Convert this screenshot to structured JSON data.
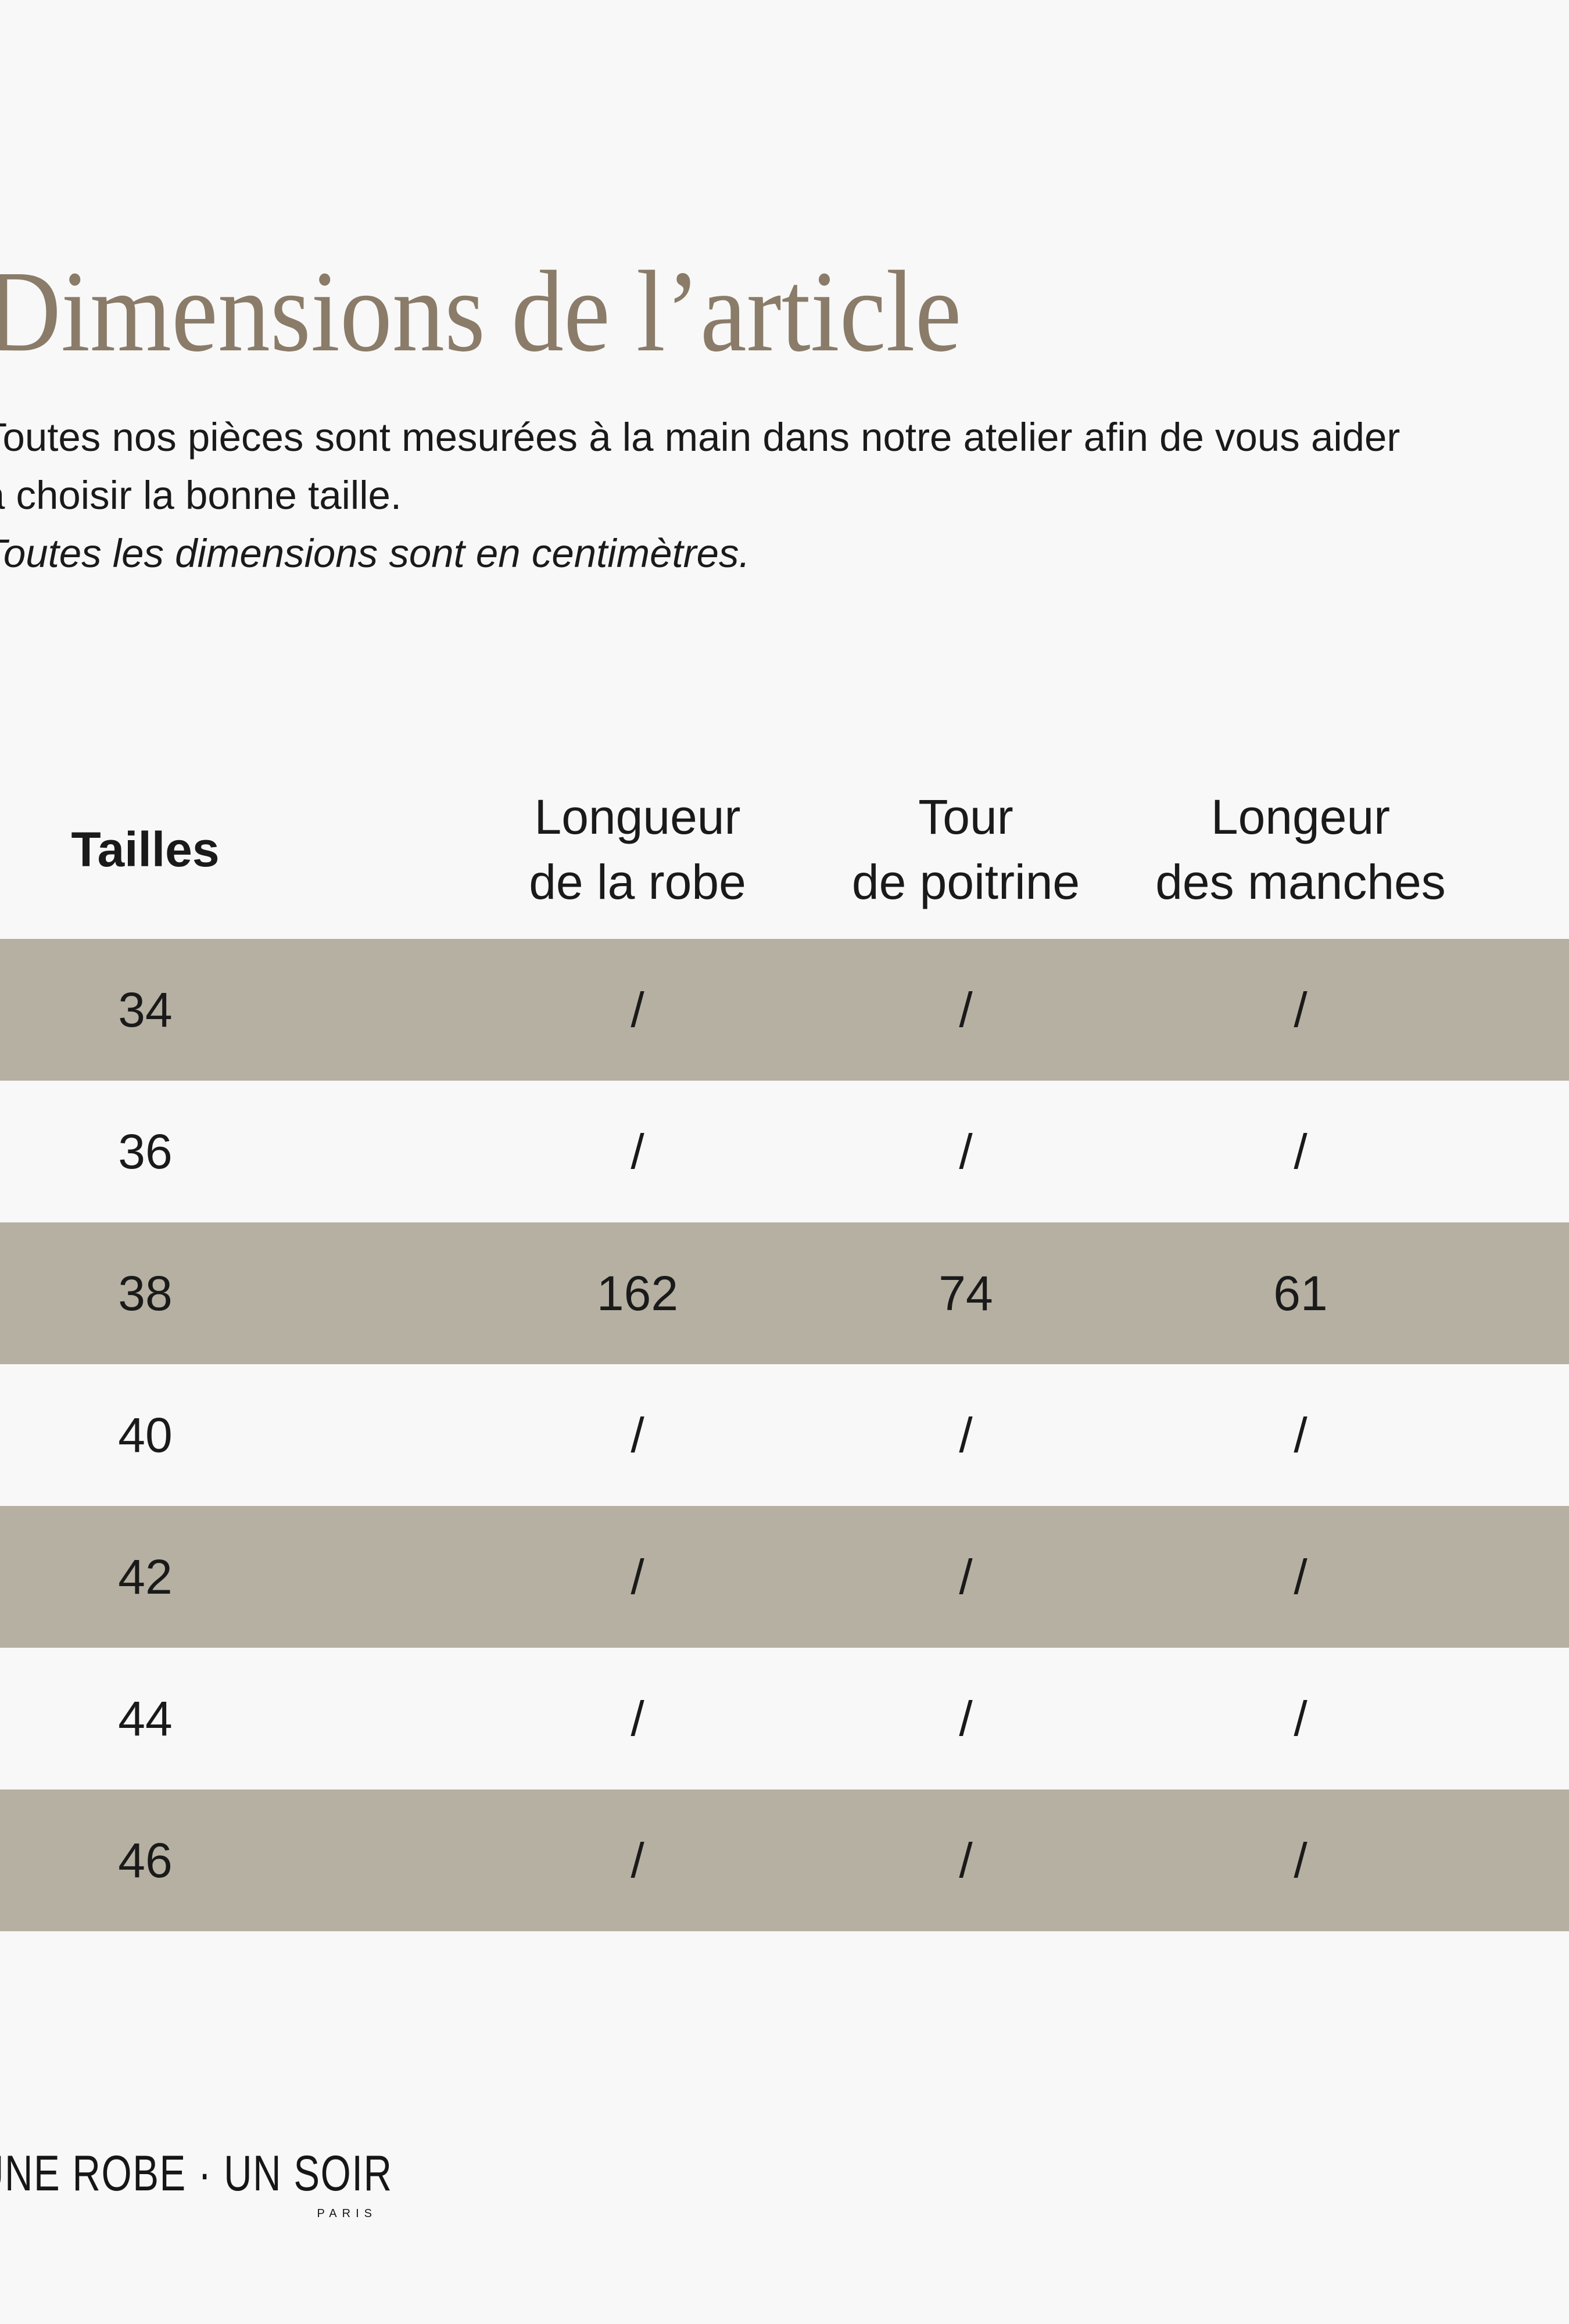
{
  "page": {
    "background_color": "#f8f8f8",
    "row_highlight_color": "#b6b0a3",
    "title_color": "#8a7c69"
  },
  "header": {
    "title": "Dimensions de l’article"
  },
  "intro": {
    "line1": "Toutes nos pièces sont mesurées à la main dans notre atelier afin de vous aider",
    "line2": "à choisir la bonne taille.",
    "note": "Toutes les dimensions sont en centimètres."
  },
  "table": {
    "columns": [
      {
        "label": "Tailles"
      },
      {
        "line1": "Longueur",
        "line2": "de la robe"
      },
      {
        "line1": "Tour",
        "line2": "de poitrine"
      },
      {
        "line1": "Longeur",
        "line2": "des manches"
      }
    ],
    "rows": [
      {
        "size": "34",
        "dress_length": "/",
        "chest": "/",
        "sleeve": "/"
      },
      {
        "size": "36",
        "dress_length": "/",
        "chest": "/",
        "sleeve": "/"
      },
      {
        "size": "38",
        "dress_length": "162",
        "chest": "74",
        "sleeve": "61"
      },
      {
        "size": "40",
        "dress_length": "/",
        "chest": "/",
        "sleeve": "/"
      },
      {
        "size": "42",
        "dress_length": "/",
        "chest": "/",
        "sleeve": "/"
      },
      {
        "size": "44",
        "dress_length": "/",
        "chest": "/",
        "sleeve": "/"
      },
      {
        "size": "46",
        "dress_length": "/",
        "chest": "/",
        "sleeve": "/"
      }
    ]
  },
  "footer": {
    "brand": "UNE ROBE · UN SOIR",
    "brand_city": "PARIS"
  }
}
